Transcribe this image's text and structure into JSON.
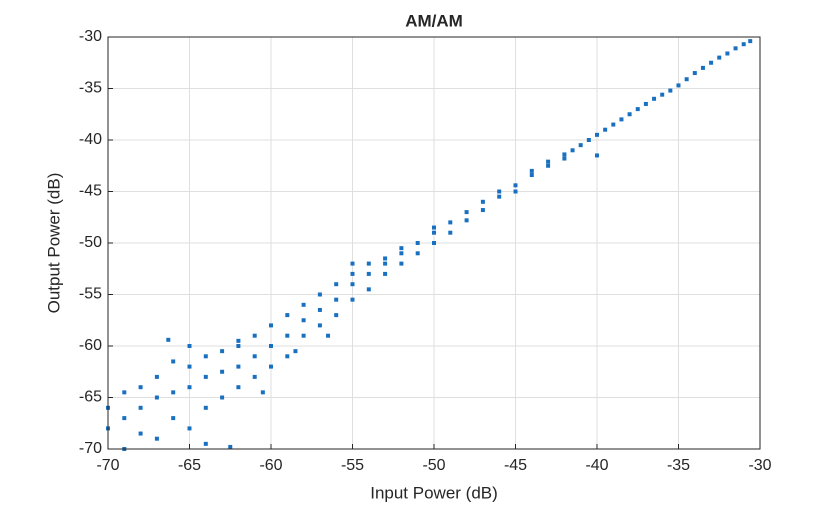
{
  "chart_data": {
    "type": "scatter",
    "title": "AM/AM",
    "xlabel": "Input Power (dB)",
    "ylabel": "Output Power (dB)",
    "color": "#1a70c0",
    "grid": true,
    "xlim": [
      -70,
      -30
    ],
    "ylim": [
      -70,
      -30
    ],
    "xticks": [
      -70,
      -65,
      -60,
      -55,
      -50,
      -45,
      -40,
      -35,
      -30
    ],
    "yticks": [
      -70,
      -65,
      -60,
      -55,
      -50,
      -45,
      -40,
      -35,
      -30
    ],
    "x": [
      -30.6,
      -31,
      -31.5,
      -32,
      -32.5,
      -33,
      -33.5,
      -34,
      -34.5,
      -35,
      -35.5,
      -36,
      -36.5,
      -37,
      -37.5,
      -38,
      -38.5,
      -39,
      -39.5,
      -40,
      -40.5,
      -41,
      -41.5,
      -42,
      -42,
      -43,
      -43,
      -44,
      -44,
      -45,
      -45,
      -46,
      -46,
      -47,
      -47,
      -48,
      -48,
      -49,
      -49,
      -50,
      -50,
      -50,
      -51,
      -51,
      -52,
      -52,
      -52,
      -53,
      -53,
      -53,
      -54,
      -54,
      -54,
      -55,
      -55,
      -55,
      -56,
      -56,
      -56,
      -57,
      -57,
      -57,
      -58,
      -58,
      -58,
      -59,
      -59,
      -59,
      -60,
      -60,
      -60,
      -61,
      -61,
      -61,
      -62,
      -62,
      -62,
      -63,
      -63,
      -63,
      -64,
      -64,
      -64,
      -65,
      -65,
      -65,
      -66,
      -66,
      -66,
      -67,
      -67,
      -67,
      -68,
      -68,
      -68,
      -69,
      -69,
      -69,
      -70,
      -70,
      -65,
      -62,
      -55,
      -40,
      -66.3,
      -64,
      -62.5,
      -58.5,
      -60.5,
      -56.5
    ],
    "y": [
      -30.4,
      -30.7,
      -31.1,
      -31.6,
      -32,
      -32.5,
      -33,
      -33.5,
      -34.1,
      -34.7,
      -35.2,
      -35.6,
      -36,
      -36.5,
      -37,
      -37.5,
      -38,
      -38.5,
      -39,
      -39.5,
      -40,
      -40.5,
      -41,
      -41.4,
      -41.8,
      -42.5,
      -42.1,
      -43.4,
      -43,
      -44.4,
      -45,
      -45.5,
      -45,
      -46.8,
      -46,
      -47.8,
      -47,
      -49,
      -48,
      -50,
      -49,
      -48.5,
      -51,
      -50,
      -52,
      -51,
      -50.5,
      -53,
      -52,
      -51.5,
      -54.5,
      -53,
      -52,
      -55.5,
      -54,
      -53,
      -57,
      -55.5,
      -54,
      -58,
      -56.5,
      -55,
      -59,
      -57.5,
      -56,
      -61,
      -59,
      -57,
      -62,
      -60,
      -58,
      -63,
      -61,
      -59,
      -64,
      -62,
      -60,
      -65,
      -62.5,
      -60.5,
      -66,
      -63,
      -61,
      -68,
      -64,
      -62,
      -67,
      -64.5,
      -61.5,
      -69,
      -65,
      -63,
      -66,
      -64,
      -68.5,
      -67,
      -64.5,
      -70,
      -66,
      -68,
      -60,
      -59.5,
      -52,
      -41.5,
      -59.4,
      -69.5,
      -69.8,
      -60.5,
      -64.5,
      -59
    ]
  }
}
